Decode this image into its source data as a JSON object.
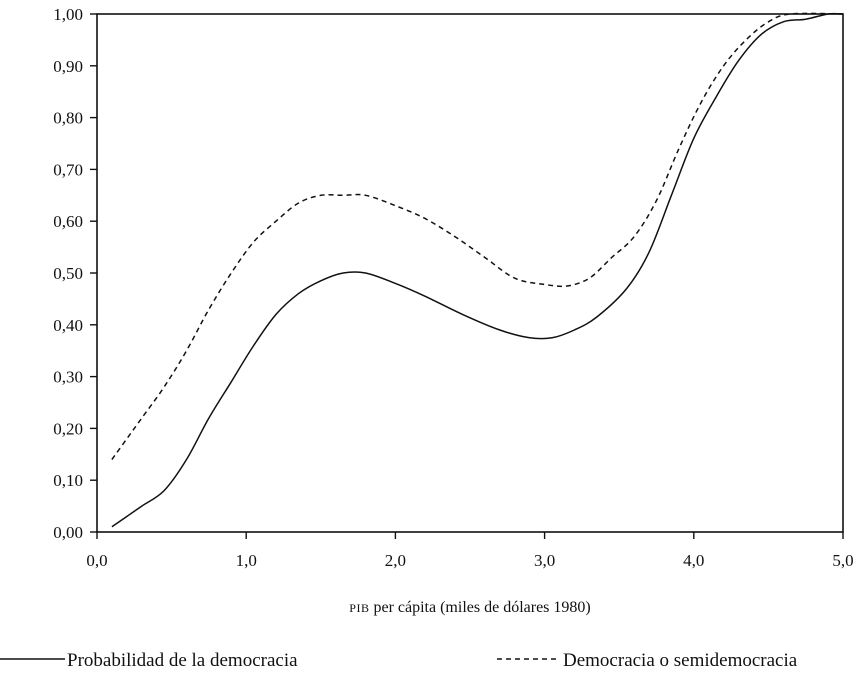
{
  "chart_data": {
    "type": "line",
    "title": "",
    "xlabel_prefix": "PIB",
    "xlabel": " per cápita (miles de dólares 1980)",
    "ylabel": "",
    "xlim": [
      0,
      5
    ],
    "ylim": [
      0,
      1
    ],
    "grid": false,
    "legend_position": "bottom",
    "x_ticks": [
      "0,0",
      "1,0",
      "2,0",
      "3,0",
      "4,0",
      "5,0"
    ],
    "y_ticks": [
      "0,00",
      "0,10",
      "0,20",
      "0,30",
      "0,40",
      "0,50",
      "0,60",
      "0,70",
      "0,80",
      "0,90",
      "1,00"
    ],
    "series": [
      {
        "name": "Probabilidad de la democracia",
        "style": "solid",
        "color": "#111111",
        "points": [
          [
            0.1,
            0.01
          ],
          [
            0.2,
            0.03
          ],
          [
            0.3,
            0.05
          ],
          [
            0.45,
            0.08
          ],
          [
            0.6,
            0.14
          ],
          [
            0.75,
            0.22
          ],
          [
            0.9,
            0.29
          ],
          [
            1.05,
            0.36
          ],
          [
            1.2,
            0.42
          ],
          [
            1.35,
            0.46
          ],
          [
            1.5,
            0.485
          ],
          [
            1.65,
            0.5
          ],
          [
            1.8,
            0.5
          ],
          [
            2.0,
            0.48
          ],
          [
            2.2,
            0.455
          ],
          [
            2.45,
            0.42
          ],
          [
            2.7,
            0.39
          ],
          [
            2.9,
            0.375
          ],
          [
            3.05,
            0.375
          ],
          [
            3.2,
            0.39
          ],
          [
            3.35,
            0.415
          ],
          [
            3.55,
            0.47
          ],
          [
            3.7,
            0.54
          ],
          [
            3.85,
            0.65
          ],
          [
            4.0,
            0.76
          ],
          [
            4.15,
            0.84
          ],
          [
            4.3,
            0.91
          ],
          [
            4.45,
            0.96
          ],
          [
            4.6,
            0.985
          ],
          [
            4.75,
            0.99
          ],
          [
            4.9,
            1.0
          ],
          [
            5.0,
            1.0
          ]
        ]
      },
      {
        "name": "Democracia o semidemocracia",
        "style": "dashed",
        "color": "#111111",
        "points": [
          [
            0.1,
            0.14
          ],
          [
            0.2,
            0.18
          ],
          [
            0.3,
            0.22
          ],
          [
            0.45,
            0.28
          ],
          [
            0.6,
            0.35
          ],
          [
            0.75,
            0.43
          ],
          [
            0.9,
            0.5
          ],
          [
            1.05,
            0.56
          ],
          [
            1.2,
            0.6
          ],
          [
            1.35,
            0.635
          ],
          [
            1.5,
            0.65
          ],
          [
            1.65,
            0.65
          ],
          [
            1.8,
            0.65
          ],
          [
            2.0,
            0.63
          ],
          [
            2.2,
            0.605
          ],
          [
            2.4,
            0.57
          ],
          [
            2.6,
            0.53
          ],
          [
            2.8,
            0.49
          ],
          [
            3.0,
            0.478
          ],
          [
            3.15,
            0.475
          ],
          [
            3.3,
            0.49
          ],
          [
            3.45,
            0.53
          ],
          [
            3.6,
            0.57
          ],
          [
            3.75,
            0.64
          ],
          [
            3.9,
            0.74
          ],
          [
            4.05,
            0.83
          ],
          [
            4.2,
            0.9
          ],
          [
            4.35,
            0.95
          ],
          [
            4.5,
            0.985
          ],
          [
            4.65,
            1.0
          ],
          [
            5.0,
            1.0
          ]
        ]
      }
    ]
  }
}
